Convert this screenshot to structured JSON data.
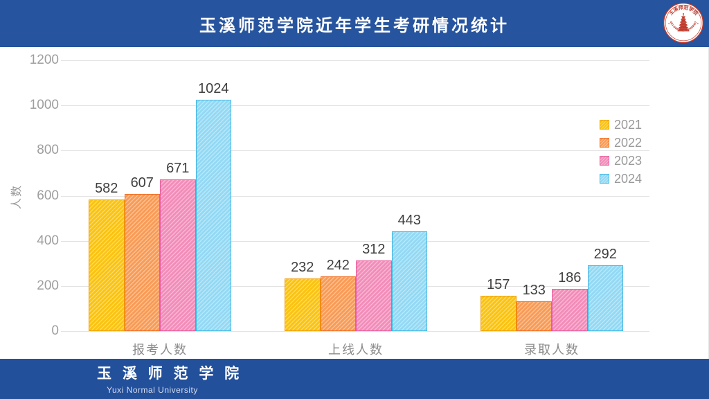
{
  "header": {
    "title": "玉溪师范学院近年学生考研情况统计",
    "logo": {
      "label_zh": "玉溪师范学院",
      "label_en": "YUXI NORMAL UNIVERSITY",
      "color": "#C0392B"
    }
  },
  "chart_data": {
    "type": "bar",
    "categories": [
      "报考人数",
      "上线人数",
      "录取人数"
    ],
    "series": [
      {
        "name": "2021",
        "values": [
          582,
          232,
          157
        ],
        "fill": "#FBC30E",
        "border": "#F0A008"
      },
      {
        "name": "2022",
        "values": [
          607,
          242,
          133
        ],
        "fill": "#F99B55",
        "border": "#F26D21"
      },
      {
        "name": "2023",
        "values": [
          671,
          312,
          186
        ],
        "fill": "#F38CB9",
        "border": "#EA5C9C"
      },
      {
        "name": "2024",
        "values": [
          1024,
          443,
          292
        ],
        "fill": "#92D9F4",
        "border": "#41B8E4"
      }
    ],
    "ylabel": "人数",
    "ylim": [
      0,
      1200
    ],
    "yticks": [
      0,
      200,
      400,
      600,
      800,
      1000,
      1200
    ],
    "grid": true,
    "legend_position": "right",
    "data_labels": true
  },
  "footer": {
    "org_zh": "玉 溪 师 范 学 院",
    "org_en": "Yuxi Normal University"
  },
  "colors": {
    "header_bg": "#27549E",
    "footer_bg": "#23509B",
    "gridline": "#E3E3E3",
    "axis_text": "#9E9E9E",
    "category_text": "#8A8A8A",
    "data_label_text": "#3F3F3F",
    "legend_text": "#9A9A9A",
    "logo_red": "#C0392B"
  }
}
